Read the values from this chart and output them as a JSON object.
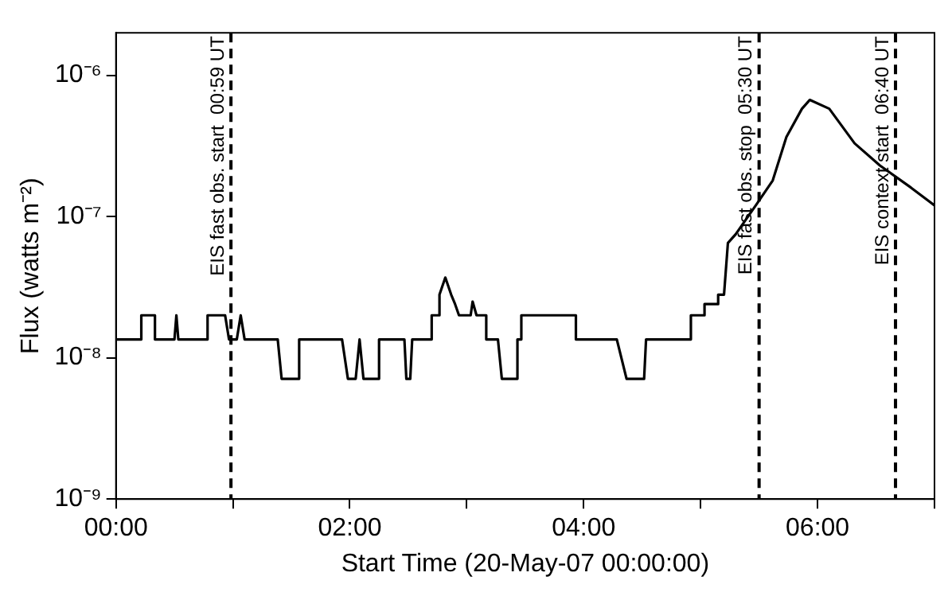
{
  "chart_data": {
    "type": "line",
    "xlabel": "Start Time (20-May-07 00:00:00)",
    "ylabel": "Flux (watts m⁻²)",
    "xlim": [
      "--05-20T00:00",
      "--05-20T07:00"
    ],
    "xticks": [
      {
        "value": "--05-20T00:00",
        "label": "00:00"
      },
      {
        "value": "--05-20T01:00",
        "label": null
      },
      {
        "value": "--05-20T02:00",
        "label": "02:00"
      },
      {
        "value": "--05-20T03:00",
        "label": null
      },
      {
        "value": "--05-20T04:00",
        "label": "04:00"
      },
      {
        "value": "--05-20T05:00",
        "label": null
      },
      {
        "value": "--05-20T06:00",
        "label": "06:00"
      },
      {
        "value": "--05-20T07:00",
        "label": null
      }
    ],
    "ylim": [
      1e-09,
      2e-06
    ],
    "yticks": [
      {
        "value": 1e-09,
        "label": "10⁻⁹"
      },
      {
        "value": 1e-08,
        "label": "10⁻⁸"
      },
      {
        "value": 1e-07,
        "label": "10⁻⁷"
      },
      {
        "value": 1e-06,
        "label": "10⁻⁶"
      }
    ],
    "log": "y",
    "grid": false,
    "legend": false,
    "marker": "none",
    "line_style": "solid",
    "series": [
      {
        "color": "#000000",
        "x": [
          "--05-20T00:00",
          "--05-20T00:13",
          "--05-20T00:13",
          "--05-20T00:20",
          "--05-20T00:20",
          "--05-20T00:30",
          "--05-20T00:31",
          "--05-20T00:32",
          "--05-20T00:47",
          "--05-20T00:47",
          "--05-20T00:56",
          "--05-20T00:58",
          "--05-20T01:02",
          "--05-20T01:04",
          "--05-20T01:06",
          "--05-20T01:23",
          "--05-20T01:25",
          "--05-20T01:34",
          "--05-20T01:34",
          "--05-20T01:56",
          "--05-20T01:59",
          "--05-20T02:03",
          "--05-20T02:05",
          "--05-20T02:07",
          "--05-20T02:15",
          "--05-20T02:15",
          "--05-20T02:28",
          "--05-20T02:29",
          "--05-20T02:31",
          "--05-20T02:32",
          "--05-20T02:42",
          "--05-20T02:42",
          "--05-20T02:46",
          "--05-20T02:46",
          "--05-20T02:49",
          "--05-20T02:52",
          "--05-20T02:54",
          "--05-20T02:56",
          "--05-20T03:02",
          "--05-20T03:03",
          "--05-20T03:05",
          "--05-20T03:10",
          "--05-20T03:10",
          "--05-20T03:16",
          "--05-20T03:18",
          "--05-20T03:26",
          "--05-20T03:26",
          "--05-20T03:28",
          "--05-20T03:28",
          "--05-20T03:56",
          "--05-20T03:56",
          "--05-20T04:17",
          "--05-20T04:22",
          "--05-20T04:31",
          "--05-20T04:32",
          "--05-20T04:55",
          "--05-20T04:55",
          "--05-20T05:02",
          "--05-20T05:02",
          "--05-20T05:09",
          "--05-20T05:09",
          "--05-20T05:12",
          "--05-20T05:14",
          "--05-20T05:18",
          "--05-20T05:29",
          "--05-20T05:37",
          "--05-20T05:44",
          "--05-20T05:52",
          "--05-20T05:56",
          "--05-20T06:06",
          "--05-20T06:19",
          "--05-20T06:32",
          "--05-20T06:48",
          "--05-20T07:00"
        ],
        "values": [
          1.35e-08,
          1.35e-08,
          2e-08,
          2e-08,
          1.35e-08,
          1.35e-08,
          2e-08,
          1.35e-08,
          1.35e-08,
          2e-08,
          2e-08,
          1.35e-08,
          1.35e-08,
          2e-08,
          1.35e-08,
          1.35e-08,
          7.1e-09,
          7.1e-09,
          1.35e-08,
          1.35e-08,
          7.1e-09,
          7.1e-09,
          1.35e-08,
          7.1e-09,
          7.1e-09,
          1.35e-08,
          1.35e-08,
          7.1e-09,
          7.1e-09,
          1.35e-08,
          1.35e-08,
          2e-08,
          2e-08,
          2.8e-08,
          3.7e-08,
          2.8e-08,
          2.4e-08,
          2e-08,
          2e-08,
          2.5e-08,
          2e-08,
          2e-08,
          1.35e-08,
          1.35e-08,
          7.1e-09,
          7.1e-09,
          1.35e-08,
          1.35e-08,
          2e-08,
          2e-08,
          1.35e-08,
          1.35e-08,
          7.1e-09,
          7.1e-09,
          1.35e-08,
          1.35e-08,
          2e-08,
          2e-08,
          2.4e-08,
          2.4e-08,
          2.8e-08,
          2.8e-08,
          6.5e-08,
          7.5e-08,
          1.24e-07,
          1.8e-07,
          3.65e-07,
          5.8e-07,
          6.7e-07,
          5.8e-07,
          3.3e-07,
          2.3e-07,
          1.6e-07,
          1.2e-07
        ]
      }
    ],
    "ref_lines": [
      {
        "axis": "x",
        "value": "--05-20T00:59",
        "label": "EIS fast obs. start  00:59 UT",
        "line_style": "dashed",
        "color": "#000000"
      },
      {
        "axis": "x",
        "value": "--05-20T05:30",
        "label": "EIS fast obs. stop  05:30 UT",
        "line_style": "dashed",
        "color": "#000000"
      },
      {
        "axis": "x",
        "value": "--05-20T06:40",
        "label": "EIS context start  06:40 UT",
        "line_style": "dashed",
        "color": "#000000"
      }
    ]
  }
}
